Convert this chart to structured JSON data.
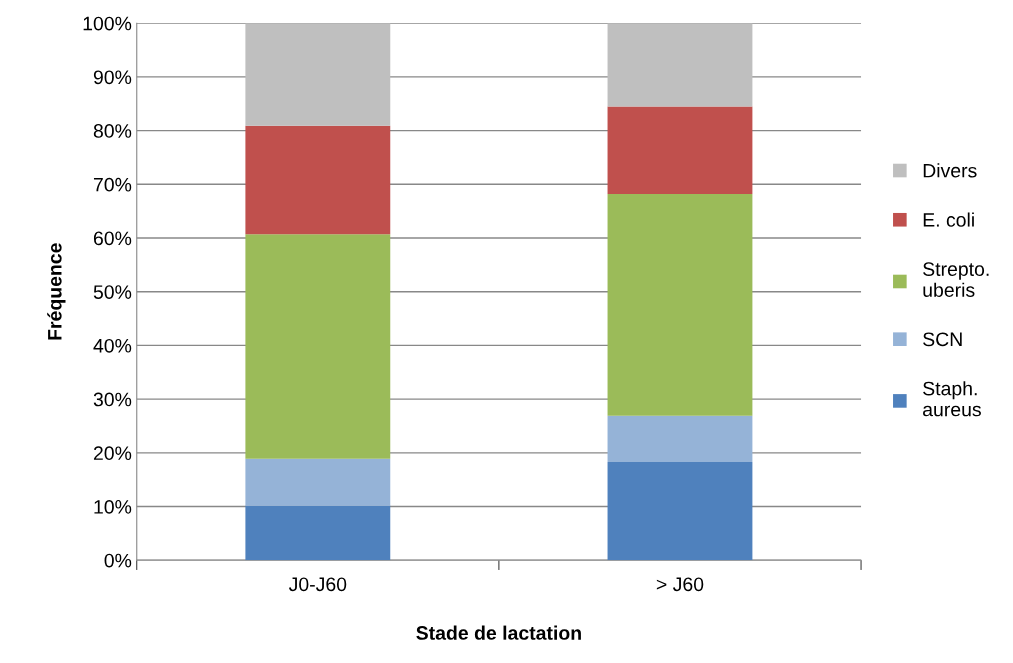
{
  "chart_data": {
    "type": "bar",
    "stacked": true,
    "xlabel": "Stade de lactation",
    "ylabel": "Fréquence",
    "categories": [
      "J0-J60",
      "> J60"
    ],
    "series": [
      {
        "name": "Staph. aureus",
        "color": "#4f81bd",
        "values": [
          10.2,
          18.3
        ]
      },
      {
        "name": "SCN",
        "color": "#95b3d7",
        "values": [
          8.7,
          8.6
        ]
      },
      {
        "name": "Strepto. uberis",
        "color": "#9bbb59",
        "values": [
          41.8,
          41.3
        ]
      },
      {
        "name": "E. coli",
        "color": "#c0504d",
        "values": [
          20.2,
          16.3
        ]
      },
      {
        "name": "Divers",
        "color": "#bfbfbf",
        "values": [
          19.1,
          15.5
        ]
      }
    ],
    "ylim": [
      0,
      100
    ],
    "yticks": [
      {
        "value": 0,
        "label": "0%"
      },
      {
        "value": 10,
        "label": "10%"
      },
      {
        "value": 20,
        "label": "20%"
      },
      {
        "value": 30,
        "label": "30%"
      },
      {
        "value": 40,
        "label": "40%"
      },
      {
        "value": 50,
        "label": "50%"
      },
      {
        "value": 60,
        "label": "60%"
      },
      {
        "value": 70,
        "label": "70%"
      },
      {
        "value": 80,
        "label": "80%"
      },
      {
        "value": 90,
        "label": "90%"
      },
      {
        "value": 100,
        "label": "100%"
      }
    ],
    "grid": "y",
    "legend": "right"
  }
}
